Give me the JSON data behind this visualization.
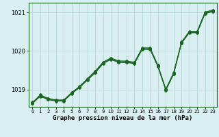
{
  "xlabel": "Graphe pression niveau de la mer (hPa)",
  "xlim": [
    -0.5,
    23.5
  ],
  "ylim": [
    1018.55,
    1021.25
  ],
  "yticks": [
    1019,
    1020,
    1021
  ],
  "xticks": [
    0,
    1,
    2,
    3,
    4,
    5,
    6,
    7,
    8,
    9,
    10,
    11,
    12,
    13,
    14,
    15,
    16,
    17,
    18,
    19,
    20,
    21,
    22,
    23
  ],
  "bg_color": "#d9eff1",
  "grid_color": "#b0d0d0",
  "line_color": "#1a6622",
  "series": [
    [
      1018.67,
      1018.85,
      1018.77,
      1018.73,
      1018.73,
      1018.92,
      1019.08,
      1019.28,
      1019.48,
      1019.71,
      1019.82,
      1019.74,
      1019.74,
      1019.71,
      1020.08,
      1020.08,
      1019.63,
      1019.01,
      1019.44,
      1020.23,
      1020.51,
      1020.51,
      1021.01,
      1021.06
    ],
    [
      1018.64,
      1018.82,
      1018.74,
      1018.7,
      1018.7,
      1018.89,
      1019.05,
      1019.24,
      1019.43,
      1019.67,
      1019.78,
      1019.7,
      1019.7,
      1019.67,
      1020.04,
      1020.04,
      1019.59,
      1018.98,
      1019.4,
      1020.2,
      1020.47,
      1020.47,
      1020.97,
      1021.02
    ],
    [
      1018.65,
      1018.83,
      1018.75,
      1018.71,
      1018.72,
      1018.91,
      1019.07,
      1019.26,
      1019.45,
      1019.69,
      1019.8,
      1019.72,
      1019.72,
      1019.69,
      1020.06,
      1020.06,
      1019.61,
      1019.0,
      1019.42,
      1020.21,
      1020.49,
      1020.49,
      1020.99,
      1021.04
    ],
    [
      1018.63,
      1018.87,
      1018.76,
      1018.72,
      1018.71,
      1018.9,
      1019.06,
      1019.26,
      1019.44,
      1019.68,
      1019.79,
      1019.71,
      1019.71,
      1019.68,
      1020.05,
      1020.05,
      1019.6,
      1018.99,
      1019.41,
      1020.22,
      1020.48,
      1020.48,
      1020.98,
      1021.03
    ]
  ]
}
